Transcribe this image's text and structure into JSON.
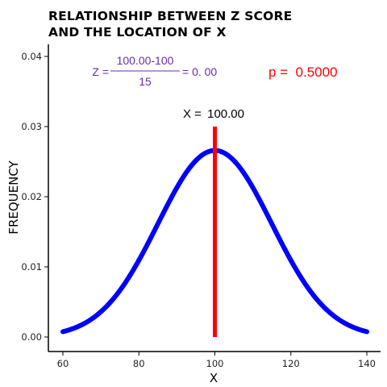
{
  "chart_data": {
    "type": "line",
    "title_lines": [
      "RELATIONSHIP BETWEEN Z SCORE",
      "AND THE LOCATION OF X"
    ],
    "xlabel": "X",
    "ylabel": "FREQUENCY",
    "xlim": [
      60,
      140
    ],
    "ylim": [
      0,
      0.04
    ],
    "x_ticks": [
      60,
      80,
      100,
      120,
      140
    ],
    "x_tick_labels": [
      "60",
      "80",
      "100",
      "120",
      "140"
    ],
    "y_ticks": [
      0.0,
      0.01,
      0.02,
      0.03,
      0.04
    ],
    "y_tick_labels": [
      "0.00",
      "0.01",
      "0.02",
      "0.03",
      "0.04"
    ],
    "grid": false,
    "series": [
      {
        "kind": "normal-density",
        "mean": 100,
        "sd": 15,
        "x_range": [
          60,
          140
        ],
        "color": "#0000ff"
      }
    ],
    "marker": {
      "x": 100,
      "y_range": [
        0,
        0.03
      ],
      "color": "#ff0000",
      "label_prefix": "X = ",
      "label_value": "100.00"
    },
    "annotations": {
      "z_prefix": "Z =",
      "z_numerator": "100.00-100",
      "z_denominator": "15",
      "z_result": "= 0. 00",
      "z_color": "#6a2ca8",
      "p_text": "p =  0.5000",
      "p_color": "#ff0000"
    }
  }
}
